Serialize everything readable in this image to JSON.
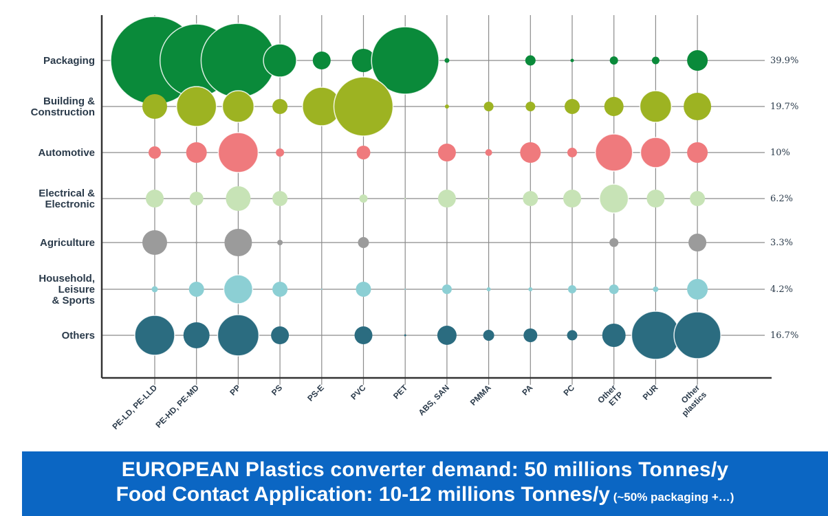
{
  "chart_data": {
    "type": "bubble",
    "rows": [
      "Packaging",
      "Building & Construction",
      "Automotive",
      "Electrical & Electronic",
      "Agriculture",
      "Household, Leisure & Sports",
      "Others"
    ],
    "row_label_lines": [
      [
        "Packaging"
      ],
      [
        "Building &",
        "Construction"
      ],
      [
        "Automotive"
      ],
      [
        "Electrical &",
        "Electronic"
      ],
      [
        "Agriculture"
      ],
      [
        "Household,",
        "Leisure",
        "& Sports"
      ],
      [
        "Others"
      ]
    ],
    "row_colors": [
      "#0a8a3a",
      "#9db322",
      "#ef7a7d",
      "#c7e3b6",
      "#9b9b9b",
      "#8ccfd4",
      "#2b6c80"
    ],
    "row_percentages": [
      "39.9%",
      "19.7%",
      "10%",
      "6.2%",
      "3.3%",
      "4.2%",
      "16.7%"
    ],
    "columns": [
      "PE-LD, PE-LLD",
      "PE-HD, PE-MD",
      "PP",
      "PS",
      "PS-E",
      "PVC",
      "PET",
      "ABS, SAN",
      "PMMA",
      "PA",
      "PC",
      "Other ETP",
      "PUR",
      "Other plastics"
    ],
    "column_label_lines": [
      [
        "PE-LD, PE-LLD"
      ],
      [
        "PE-HD, PE-MD"
      ],
      [
        "PP"
      ],
      [
        "PS"
      ],
      [
        "PS-E"
      ],
      [
        "PVC"
      ],
      [
        "PET"
      ],
      [
        "ABS, SAN"
      ],
      [
        "PMMA"
      ],
      [
        "PA"
      ],
      [
        "PC"
      ],
      [
        "Other",
        "ETP"
      ],
      [
        "PUR"
      ],
      [
        "Other",
        "plastics"
      ]
    ],
    "bubble_size_note": "values are relative bubble sizes (diameter scale)",
    "values": [
      [
        128,
        106,
        108,
        48,
        26,
        34,
        98,
        7,
        0,
        15,
        5,
        12,
        11,
        30
      ],
      [
        36,
        58,
        46,
        22,
        56,
        86,
        0,
        6,
        14,
        14,
        22,
        28,
        46,
        40
      ],
      [
        18,
        30,
        58,
        12,
        0,
        20,
        0,
        26,
        10,
        30,
        14,
        54,
        44,
        30
      ],
      [
        26,
        20,
        36,
        22,
        0,
        12,
        2,
        26,
        2,
        22,
        26,
        42,
        26,
        22
      ],
      [
        36,
        3,
        40,
        8,
        0,
        16,
        0,
        0,
        0,
        0,
        0,
        13,
        0,
        26
      ],
      [
        9,
        22,
        42,
        22,
        2,
        22,
        2,
        14,
        6,
        6,
        12,
        14,
        8,
        30
      ],
      [
        58,
        38,
        60,
        26,
        0,
        26,
        3,
        28,
        16,
        20,
        15,
        34,
        70,
        68
      ]
    ]
  },
  "banner": {
    "line1": "EUROPEAN Plastics converter demand: 50 millions Tonnes/y",
    "line2_main": "Food Contact Application: 10-12 millions Tonnes/y",
    "line2_small": " (~50% packaging +…)"
  }
}
